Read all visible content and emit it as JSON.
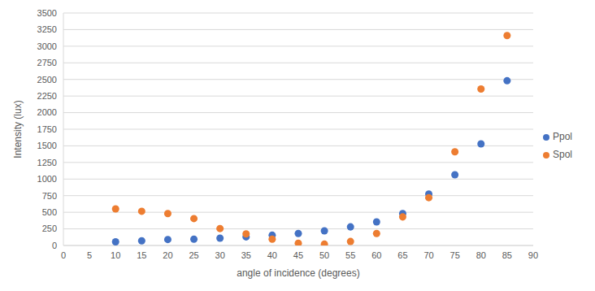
{
  "chart_data": {
    "type": "scatter",
    "x_label": "angle of incidence (degrees)",
    "y_label": "Intensity (lux)",
    "x": [
      10,
      15,
      20,
      25,
      30,
      35,
      40,
      45,
      50,
      55,
      60,
      65,
      70,
      75,
      80,
      85
    ],
    "series": [
      {
        "name": "Ppol",
        "color": "#4472c4",
        "marker": "circle",
        "values": [
          55,
          70,
          90,
          95,
          110,
          130,
          155,
          180,
          220,
          280,
          355,
          480,
          775,
          1065,
          1530,
          2480
        ]
      },
      {
        "name": "Spol",
        "color": "#ed7d31",
        "marker": "circle",
        "values": [
          550,
          515,
          480,
          405,
          255,
          175,
          95,
          35,
          20,
          60,
          180,
          430,
          720,
          1410,
          2355,
          3160
        ]
      }
    ],
    "xlim": [
      0,
      90
    ],
    "xticks": [
      0,
      5,
      10,
      15,
      20,
      25,
      30,
      35,
      40,
      45,
      50,
      55,
      60,
      65,
      70,
      75,
      80,
      85,
      90
    ],
    "ylim": [
      0,
      3500
    ],
    "yticks": [
      0,
      250,
      500,
      750,
      1000,
      1250,
      1500,
      1750,
      2000,
      2250,
      2500,
      2750,
      3000,
      3250,
      3500
    ],
    "grid": true,
    "legend": "right"
  }
}
